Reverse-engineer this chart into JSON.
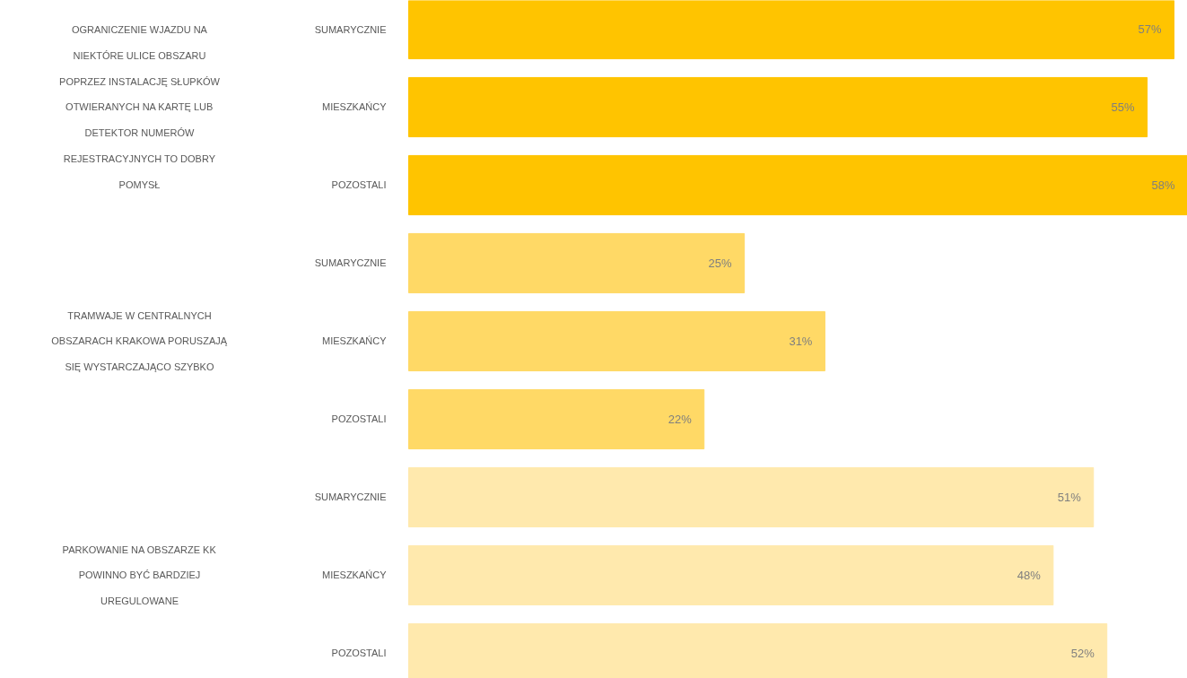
{
  "chart_data": {
    "type": "bar",
    "orientation": "horizontal",
    "value_labels": [
      "57%",
      "55%",
      "58%",
      "25%",
      "31%",
      "22%",
      "51%",
      "48%",
      "52%"
    ],
    "categories": [
      "SUMARYCZNIE",
      "MIESZKAŃCY",
      "POZOSTALI",
      "SUMARYCZNIE",
      "MIESZKAŃCY",
      "POZOSTALI",
      "SUMARYCZNIE",
      "MIESZKAŃCY",
      "POZOSTALI"
    ],
    "values": [
      57,
      55,
      58,
      25,
      31,
      22,
      51,
      48,
      52
    ],
    "colors": [
      "#ffc400",
      "#ffc400",
      "#ffc400",
      "#ffd966",
      "#ffd966",
      "#ffd966",
      "#ffe9ad",
      "#ffe9ad",
      "#ffe9ad"
    ],
    "annotations": [
      "OGRANICZENIE WJAZDU NA NIEKTÓRE ULICE OBSZARU POPRZEZ INSTALACJĘ SŁUPKÓW OTWIERANYCH NA KARTĘ LUB DETEKTOR NUMERÓW REJESTRACYJNYCH TO DOBRY POMYSŁ",
      "TRAMWAJE W CENTRALNYCH OBSZARACH KRAKOWA PORUSZAJĄ SIĘ WYSTARCZAJĄCO SZYBKO",
      "PARKOWANIE NA OBSZARZE KK POWINNO BYĆ BARDZIEJ UREGULOWANE"
    ]
  }
}
